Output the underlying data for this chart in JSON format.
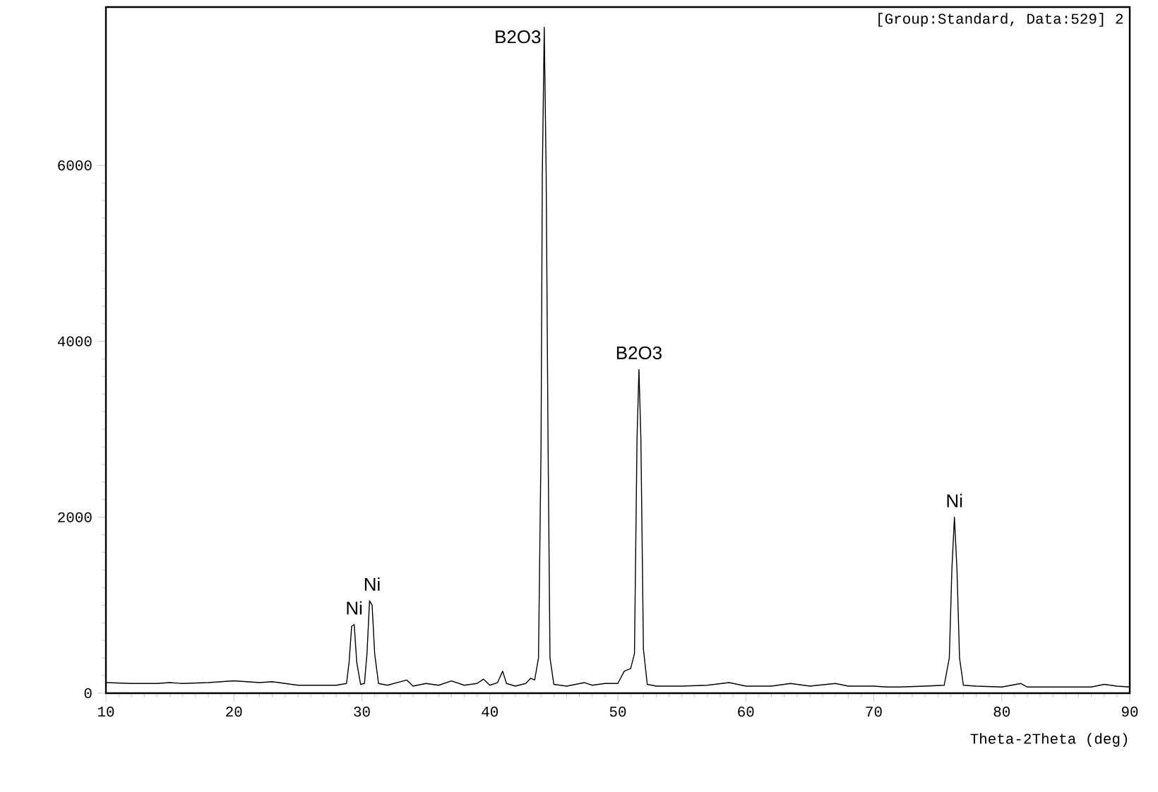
{
  "chart_data": {
    "type": "line",
    "xlabel": "Theta-2Theta (deg)",
    "color": "#000000",
    "x": [
      10,
      12,
      14,
      15,
      16,
      18,
      20,
      21,
      22,
      23,
      24,
      25,
      26,
      27,
      28,
      28.8,
      29.0,
      29.2,
      29.4,
      29.6,
      29.9,
      30.2,
      30.4,
      30.6,
      30.8,
      31.0,
      31.3,
      32,
      33.5,
      34,
      35,
      36,
      37,
      38,
      39,
      39.5,
      40,
      40.6,
      41.0,
      41.3,
      42,
      42.8,
      43.2,
      43.5,
      43.8,
      44.0,
      44.1,
      44.25,
      44.4,
      44.55,
      44.7,
      45.0,
      46,
      47.4,
      48,
      49,
      50,
      50.5,
      51.0,
      51.3,
      51.5,
      51.65,
      51.8,
      52.0,
      52.3,
      53,
      55,
      57,
      58.7,
      60,
      62,
      63.5,
      65,
      67,
      68,
      70,
      71,
      72,
      74,
      75.5,
      75.9,
      76.1,
      76.3,
      76.5,
      76.7,
      77,
      78,
      80,
      81.5,
      82,
      85,
      87,
      88,
      89,
      90
    ],
    "values": [
      120,
      110,
      110,
      120,
      110,
      120,
      140,
      130,
      120,
      130,
      110,
      90,
      90,
      90,
      90,
      110,
      350,
      760,
      780,
      350,
      100,
      110,
      450,
      1050,
      1000,
      450,
      110,
      90,
      150,
      80,
      110,
      90,
      140,
      90,
      110,
      160,
      90,
      120,
      250,
      110,
      80,
      110,
      170,
      150,
      400,
      2800,
      5900,
      7570,
      5900,
      2800,
      400,
      100,
      80,
      120,
      90,
      110,
      110,
      250,
      280,
      450,
      2900,
      3680,
      2900,
      500,
      100,
      80,
      80,
      90,
      120,
      80,
      80,
      110,
      80,
      110,
      80,
      80,
      70,
      70,
      80,
      90,
      400,
      1400,
      2000,
      1400,
      400,
      90,
      80,
      70,
      110,
      70,
      70,
      70,
      100,
      80,
      70
    ],
    "xlim": [
      10,
      90
    ],
    "xticks": [
      10,
      20,
      30,
      40,
      50,
      60,
      70,
      80,
      90
    ],
    "ylim": [
      0,
      7800
    ],
    "yticks": [
      0,
      2000,
      4000,
      6000
    ],
    "grid": false,
    "marker": "none",
    "line_style": "solid",
    "annotations": [
      {
        "text": "Ni",
        "x": 29.4,
        "y": 780
      },
      {
        "text": "Ni",
        "x": 30.8,
        "y": 1050
      },
      {
        "text": "B2O3",
        "x": 44.25,
        "y": 7570
      },
      {
        "text": "B2O3",
        "x": 51.65,
        "y": 3680
      },
      {
        "text": "Ni",
        "x": 76.3,
        "y": 2000
      },
      "[Group:Standard, Data:529] 2"
    ]
  }
}
